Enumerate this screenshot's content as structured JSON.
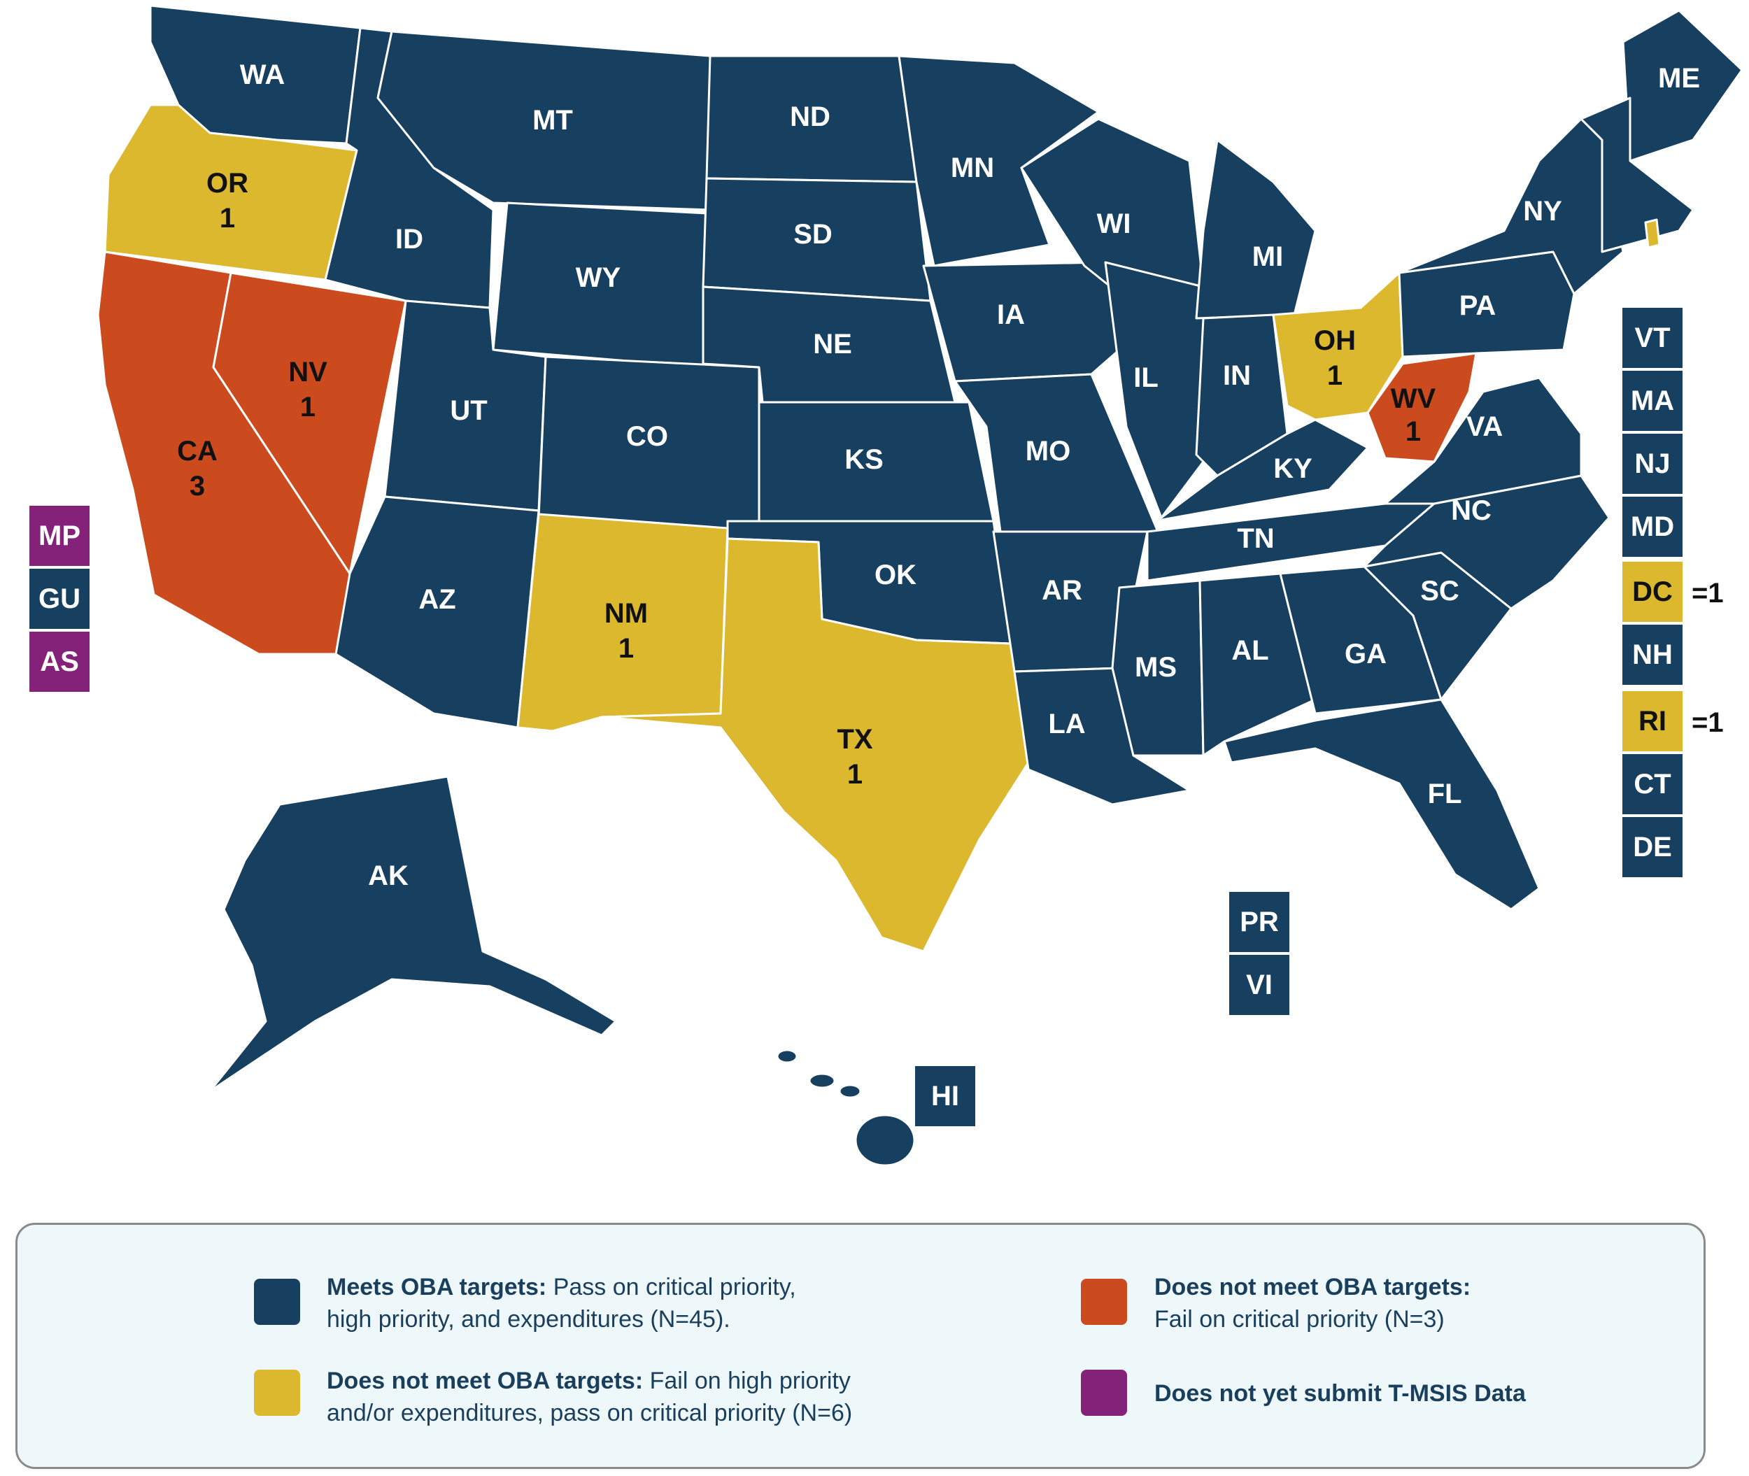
{
  "colors": {
    "meets": "#173f5f",
    "high_priority_fail": "#dbb82e",
    "critical_fail": "#cb4b1f",
    "no_data": "#84227a"
  },
  "states": {
    "WA": {
      "label": "WA",
      "status": "meets"
    },
    "OR": {
      "label": "OR",
      "count": "1",
      "status": "high_priority_fail"
    },
    "CA": {
      "label": "CA",
      "count": "3",
      "status": "critical_fail"
    },
    "NV": {
      "label": "NV",
      "count": "1",
      "status": "critical_fail"
    },
    "ID": {
      "label": "ID",
      "status": "meets"
    },
    "MT": {
      "label": "MT",
      "status": "meets"
    },
    "WY": {
      "label": "WY",
      "status": "meets"
    },
    "UT": {
      "label": "UT",
      "status": "meets"
    },
    "AZ": {
      "label": "AZ",
      "status": "meets"
    },
    "CO": {
      "label": "CO",
      "status": "meets"
    },
    "NM": {
      "label": "NM",
      "count": "1",
      "status": "high_priority_fail"
    },
    "ND": {
      "label": "ND",
      "status": "meets"
    },
    "SD": {
      "label": "SD",
      "status": "meets"
    },
    "NE": {
      "label": "NE",
      "status": "meets"
    },
    "KS": {
      "label": "KS",
      "status": "meets"
    },
    "OK": {
      "label": "OK",
      "status": "meets"
    },
    "TX": {
      "label": "TX",
      "count": "1",
      "status": "high_priority_fail"
    },
    "MN": {
      "label": "MN",
      "status": "meets"
    },
    "IA": {
      "label": "IA",
      "status": "meets"
    },
    "MO": {
      "label": "MO",
      "status": "meets"
    },
    "AR": {
      "label": "AR",
      "status": "meets"
    },
    "LA": {
      "label": "LA",
      "status": "meets"
    },
    "WI": {
      "label": "WI",
      "status": "meets"
    },
    "IL": {
      "label": "IL",
      "status": "meets"
    },
    "MI": {
      "label": "MI",
      "status": "meets"
    },
    "IN": {
      "label": "IN",
      "status": "meets"
    },
    "OH": {
      "label": "OH",
      "count": "1",
      "status": "high_priority_fail"
    },
    "KY": {
      "label": "KY",
      "status": "meets"
    },
    "TN": {
      "label": "TN",
      "status": "meets"
    },
    "MS": {
      "label": "MS",
      "status": "meets"
    },
    "AL": {
      "label": "AL",
      "status": "meets"
    },
    "GA": {
      "label": "GA",
      "status": "meets"
    },
    "FL": {
      "label": "FL",
      "status": "meets"
    },
    "SC": {
      "label": "SC",
      "status": "meets"
    },
    "NC": {
      "label": "NC",
      "status": "meets"
    },
    "VA": {
      "label": "VA",
      "status": "meets"
    },
    "WV": {
      "label": "WV",
      "count": "1",
      "status": "critical_fail"
    },
    "PA": {
      "label": "PA",
      "status": "meets"
    },
    "NY": {
      "label": "NY",
      "status": "meets"
    },
    "ME": {
      "label": "ME",
      "status": "meets"
    },
    "AK": {
      "label": "AK",
      "status": "meets"
    },
    "HI": {
      "label": "HI",
      "status": "meets"
    }
  },
  "side_boxes": {
    "VT": {
      "label": "VT",
      "status": "meets"
    },
    "MA": {
      "label": "MA",
      "status": "meets"
    },
    "NJ": {
      "label": "NJ",
      "status": "meets"
    },
    "MD": {
      "label": "MD",
      "status": "meets"
    },
    "DC": {
      "label": "DC",
      "count": "=1",
      "status": "high_priority_fail"
    },
    "NH": {
      "label": "NH",
      "status": "meets"
    },
    "RI": {
      "label": "RI",
      "count": "=1",
      "status": "high_priority_fail"
    },
    "CT": {
      "label": "CT",
      "status": "meets"
    },
    "DE": {
      "label": "DE",
      "status": "meets"
    }
  },
  "territories": {
    "MP": {
      "label": "MP",
      "status": "no_data"
    },
    "GU": {
      "label": "GU",
      "status": "meets"
    },
    "AS": {
      "label": "AS",
      "status": "no_data"
    },
    "PR": {
      "label": "PR",
      "status": "meets"
    },
    "VI": {
      "label": "VI",
      "status": "meets"
    }
  },
  "legend": {
    "meets": {
      "bold": "Meets OBA targets:",
      "line1_rest": " Pass on critical priority,",
      "line2": "high priority, and expenditures (N=45)."
    },
    "high_priority_fail": {
      "bold": "Does not meet OBA targets:",
      "line1_rest": " Fail on high priority",
      "line2": "and/or expenditures, pass on critical priority (N=6)"
    },
    "critical_fail": {
      "bold": "Does not meet OBA targets:",
      "line2": "Fail on critical priority (N=3)"
    },
    "no_data": {
      "bold": "Does not yet submit T-MSIS Data"
    }
  }
}
